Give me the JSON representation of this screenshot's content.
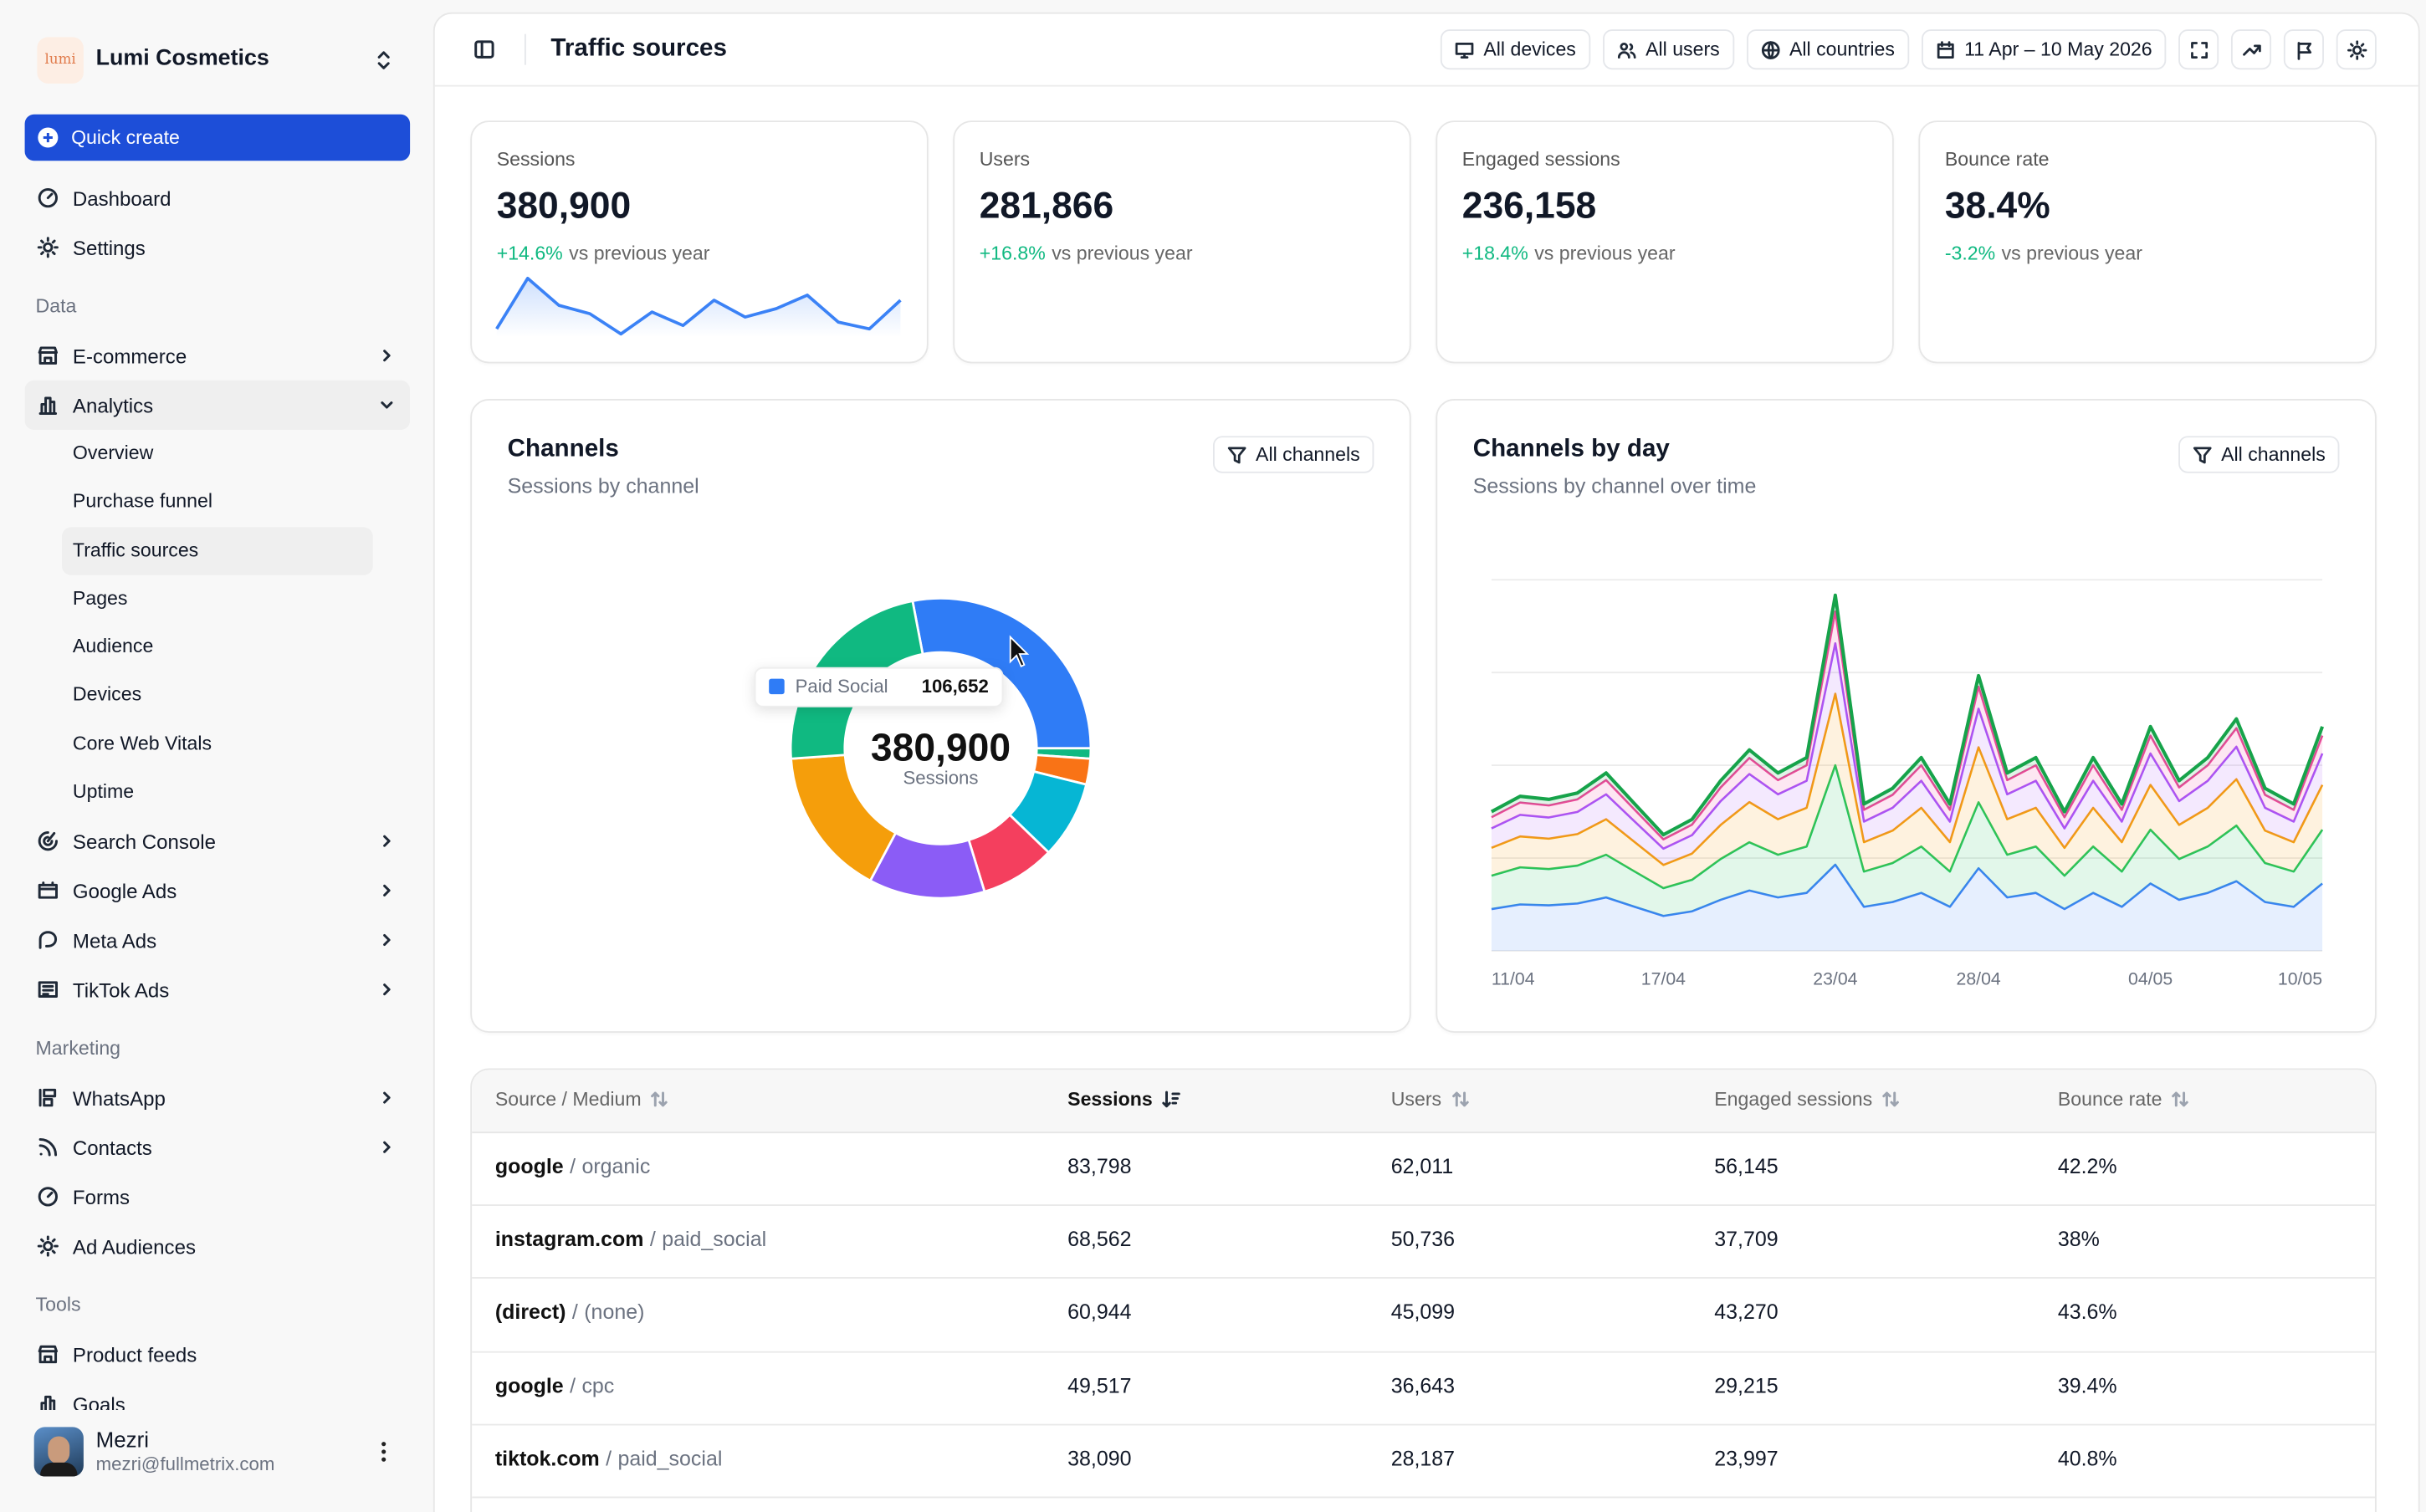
{
  "sidebar": {
    "logo": "lumi",
    "workspace": "Lumi Cosmetics",
    "quick_create": "Quick create",
    "menu": [
      {
        "label": "Dashboard"
      },
      {
        "label": "Settings"
      },
      {
        "section": "Data"
      },
      {
        "label": "E-commerce",
        "expandable": true
      },
      {
        "label": "Analytics",
        "expandable": true,
        "expanded": true,
        "active_child": 2,
        "children": [
          "Overview",
          "Purchase funnel",
          "Traffic sources",
          "Pages",
          "Audience",
          "Devices",
          "Core Web Vitals",
          "Uptime"
        ]
      },
      {
        "label": "Search Console",
        "expandable": true
      },
      {
        "label": "Google Ads",
        "expandable": true
      },
      {
        "label": "Meta Ads",
        "expandable": true
      },
      {
        "label": "TikTok Ads",
        "expandable": true
      },
      {
        "section": "Marketing"
      },
      {
        "label": "WhatsApp",
        "expandable": true
      },
      {
        "label": "Contacts",
        "expandable": true
      },
      {
        "label": "Forms"
      },
      {
        "label": "Ad Audiences"
      },
      {
        "section": "Tools"
      },
      {
        "label": "Product feeds"
      },
      {
        "label": "Goals"
      }
    ],
    "user": {
      "name": "Mezri",
      "email": "mezri@fullmetrix.com"
    }
  },
  "header": {
    "title": "Traffic sources",
    "filters": [
      "All devices",
      "All users",
      "All countries",
      "11 Apr – 10 May 2026"
    ]
  },
  "kpis": [
    {
      "label": "Sessions",
      "value": "380,900",
      "change": "+14.6%",
      "compare": "vs previous year",
      "change_color": "#10b981"
    },
    {
      "label": "Users",
      "value": "281,866",
      "change": "+16.8%",
      "compare": "vs previous year",
      "change_color": "#10b981"
    },
    {
      "label": "Engaged sessions",
      "value": "236,158",
      "change": "+18.4%",
      "compare": "vs previous year",
      "change_color": "#10b981"
    },
    {
      "label": "Bounce rate",
      "value": "38.4%",
      "change": "-3.2%",
      "compare": "vs previous year",
      "change_color": "#10b981"
    }
  ],
  "chart_data": [
    {
      "type": "pie",
      "title": "Channels",
      "subtitle": "Sessions by channel",
      "filter": "All channels",
      "center_text": "380,900",
      "center_label": "Sessions",
      "categories": [
        "Paid Social",
        null,
        null,
        null,
        null,
        null,
        null,
        null
      ],
      "values": [
        106652,
        4232,
        10581,
        31742,
        30684,
        47613,
        61367,
        88029
      ],
      "value_labels": [
        "106,652",
        null,
        null,
        null,
        null,
        null,
        null,
        null
      ],
      "colors": [
        "#2f7cf6",
        "#10b981",
        "#f97316",
        "#06b6d4",
        "#f43f5e",
        "#8b5cf6",
        "#f59e0b",
        "#10b981"
      ]
    },
    {
      "type": "area",
      "stacked": true,
      "title": "Channels by day",
      "subtitle": "Sessions by channel over time",
      "filter": "All channels",
      "categories": [
        "11/04",
        null,
        null,
        null,
        null,
        null,
        "17/04",
        null,
        null,
        null,
        null,
        null,
        "23/04",
        null,
        null,
        null,
        null,
        "28/04",
        null,
        null,
        null,
        null,
        null,
        "04/05",
        null,
        null,
        null,
        null,
        null,
        "10/05"
      ],
      "ylim": [
        0,
        28000
      ],
      "yticks": [
        0,
        7000,
        14000,
        21000,
        28000
      ],
      "grid": true,
      "series": [
        {
          "color": "#3b82f6",
          "values": [
            3150,
            3500,
            3430,
            3570,
            4030,
            3320,
            2630,
            2980,
            3850,
            4550,
            4030,
            4370,
            6500,
            3320,
            3680,
            4370,
            3320,
            6230,
            4030,
            4370,
            3150,
            4370,
            3320,
            5080,
            3850,
            4370,
            5250,
            3680,
            3320,
            5080
          ]
        },
        {
          "color": "#22c55e",
          "values": [
            2520,
            2800,
            2740,
            2860,
            3220,
            2660,
            2100,
            2380,
            3080,
            3640,
            3220,
            3500,
            7500,
            2660,
            2940,
            3500,
            2660,
            4980,
            3220,
            3500,
            2520,
            3500,
            2660,
            4060,
            3080,
            3500,
            4200,
            2940,
            2660,
            4060
          ]
        },
        {
          "color": "#f59e0b",
          "values": [
            2100,
            2330,
            2290,
            2380,
            2680,
            2220,
            1750,
            1980,
            2570,
            3030,
            2680,
            2920,
            5400,
            2220,
            2450,
            2920,
            2220,
            4150,
            2680,
            2920,
            2100,
            2920,
            2220,
            3380,
            2570,
            2920,
            3500,
            2450,
            2220,
            3380
          ]
        },
        {
          "color": "#a855f7",
          "values": [
            1470,
            1630,
            1600,
            1670,
            1880,
            1550,
            1230,
            1390,
            1800,
            2120,
            1880,
            2040,
            3800,
            1550,
            1720,
            2040,
            1550,
            2910,
            1880,
            2040,
            1470,
            2040,
            1550,
            2370,
            1800,
            2040,
            2450,
            1720,
            1550,
            2370
          ]
        },
        {
          "color": "#ec4899",
          "values": [
            840,
            930,
            910,
            950,
            1070,
            890,
            700,
            790,
            1030,
            1210,
            1070,
            1170,
            2400,
            890,
            980,
            1170,
            890,
            1660,
            1070,
            1170,
            840,
            1170,
            890,
            1350,
            1030,
            1170,
            1400,
            980,
            890,
            1350
          ]
        },
        {
          "color": "#16a34a",
          "values": [
            420,
            470,
            460,
            480,
            540,
            440,
            350,
            400,
            510,
            610,
            540,
            580,
            1230,
            440,
            490,
            580,
            440,
            830,
            540,
            580,
            420,
            580,
            440,
            680,
            510,
            580,
            700,
            490,
            440,
            680
          ]
        }
      ]
    },
    {
      "type": "sparkline",
      "color": "#3b82f6",
      "values": [
        10450,
        14950,
        12550,
        11800,
        10000,
        11950,
        10750,
        13000,
        11500,
        12250,
        13450,
        11050,
        10450,
        13000
      ]
    }
  ],
  "table": {
    "columns": [
      "Source / Medium",
      "Sessions",
      "Users",
      "Engaged sessions",
      "Bounce rate"
    ],
    "sorted_column": 1,
    "separator": "/",
    "rows": [
      {
        "source": "google",
        "medium": "organic",
        "cells": [
          "83,798",
          "62,011",
          "56,145",
          "42.2%"
        ]
      },
      {
        "source": "instagram.com",
        "medium": "paid_social",
        "cells": [
          "68,562",
          "50,736",
          "37,709",
          "38%"
        ]
      },
      {
        "source": "(direct)",
        "medium": "(none)",
        "cells": [
          "60,944",
          "45,099",
          "43,270",
          "43.6%"
        ]
      },
      {
        "source": "google",
        "medium": "cpc",
        "cells": [
          "49,517",
          "36,643",
          "29,215",
          "39.4%"
        ]
      },
      {
        "source": "tiktok.com",
        "medium": "paid_social",
        "cells": [
          "38,090",
          "28,187",
          "23,997",
          "40.8%"
        ]
      }
    ]
  }
}
